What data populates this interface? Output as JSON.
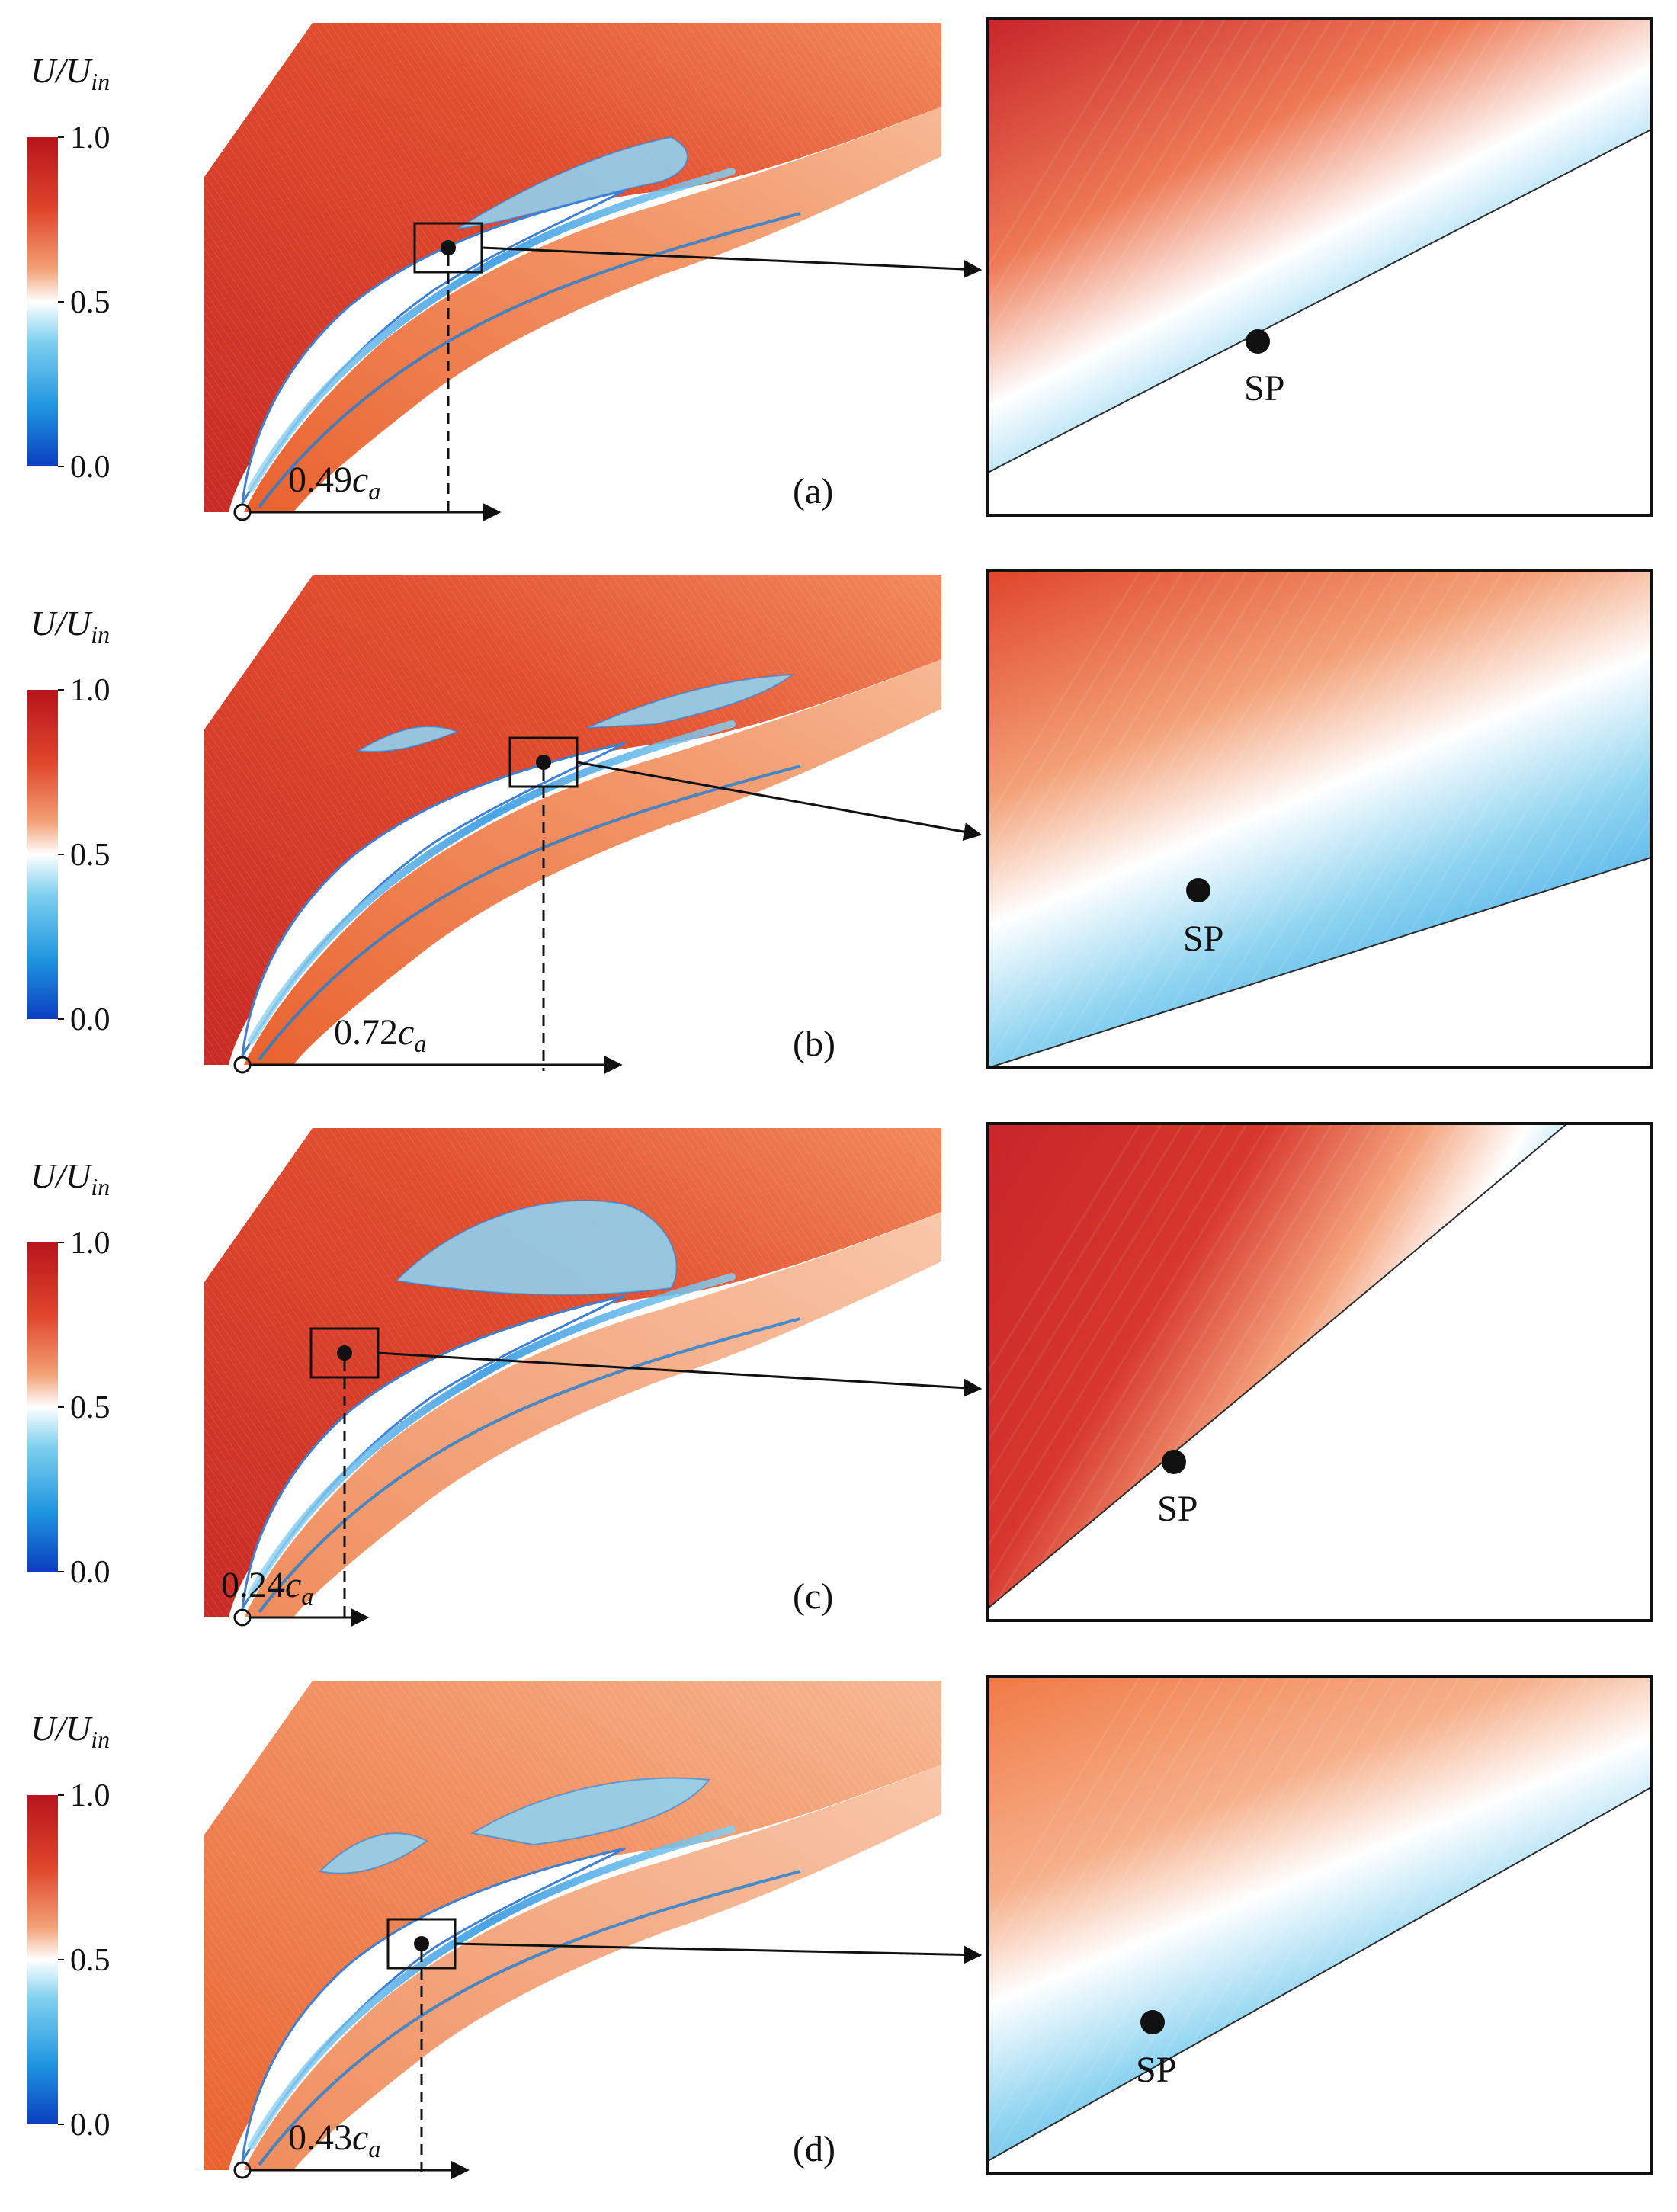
{
  "figure": {
    "colorbar": {
      "label_main": "U/U",
      "label_sub": "in",
      "ticks": [
        "1.0",
        "0.5",
        "0.0"
      ],
      "tick_values": [
        1.0,
        0.5,
        0.0
      ],
      "colors": {
        "high": "#c0171d",
        "upper": "#e8622f",
        "mid_warm": "#f6b995",
        "white": "#ffffff",
        "mid_cool": "#83d0ef",
        "lower": "#2d9fe0",
        "low": "#0a3fbf"
      }
    },
    "panels": [
      {
        "id": "a",
        "label": "(a)",
        "distance_label": "0.49c",
        "distance_sub": "a",
        "sp_fraction": 0.49,
        "marker_label": "SP"
      },
      {
        "id": "b",
        "label": "(b)",
        "distance_label": "0.72c",
        "distance_sub": "a",
        "sp_fraction": 0.72,
        "marker_label": "SP"
      },
      {
        "id": "c",
        "label": "(c)",
        "distance_label": "0.24c",
        "distance_sub": "a",
        "sp_fraction": 0.24,
        "marker_label": "SP"
      },
      {
        "id": "d",
        "label": "(d)",
        "distance_label": "0.43c",
        "distance_sub": "a",
        "sp_fraction": 0.43,
        "marker_label": "SP"
      }
    ]
  }
}
